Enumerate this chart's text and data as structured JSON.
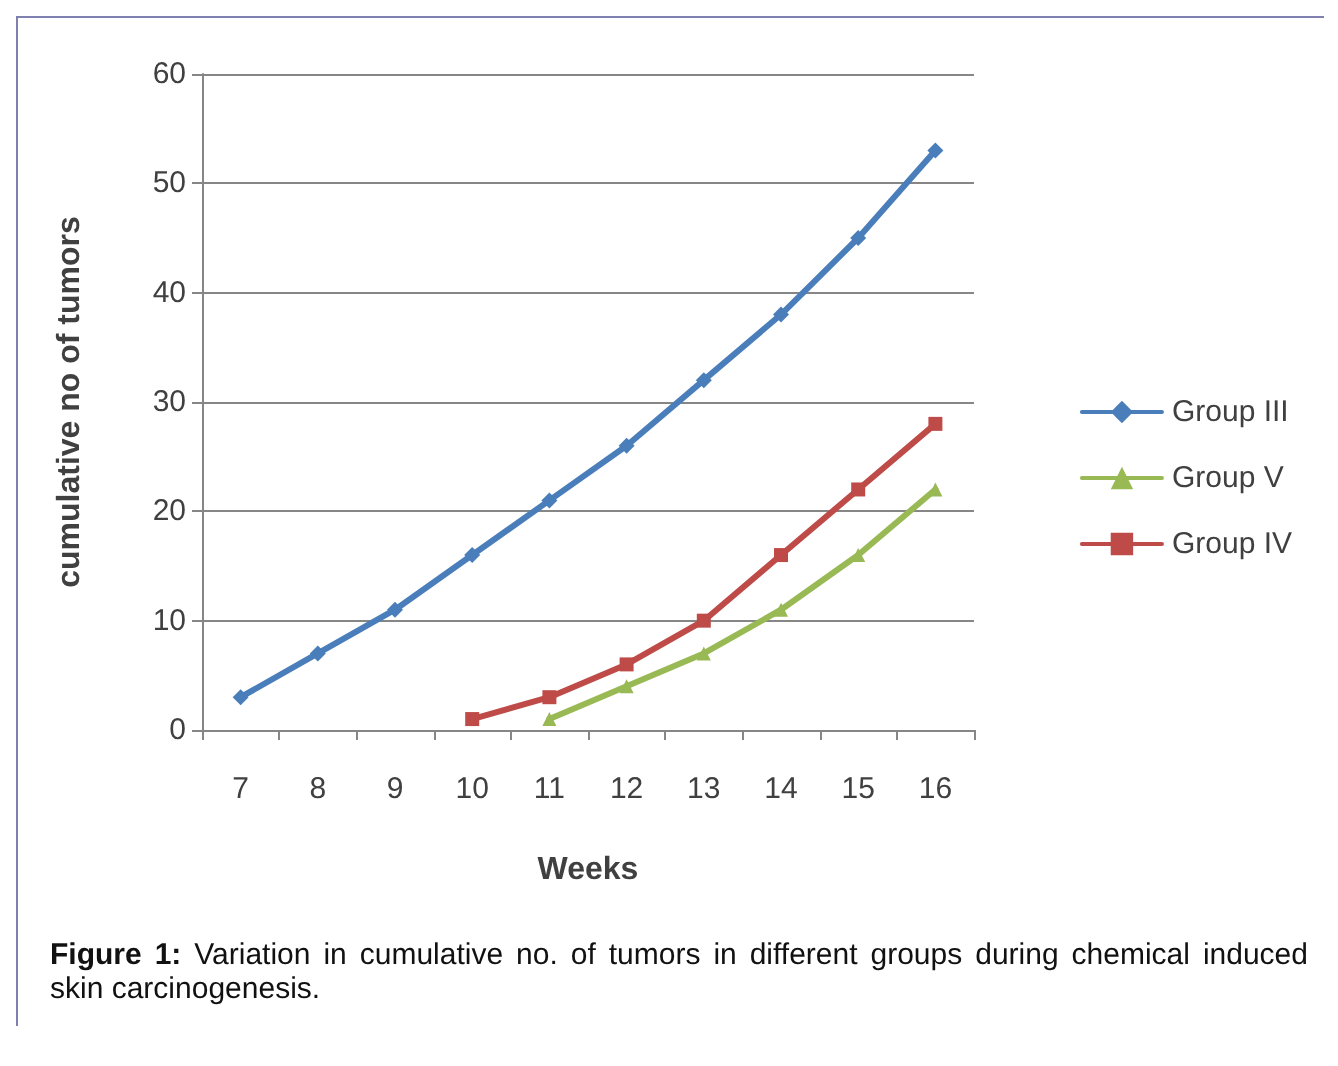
{
  "chart_data": {
    "type": "line",
    "xlabel": "Weeks",
    "ylabel": "cumulative no of tumors",
    "categories": [
      "7",
      "8",
      "9",
      "10",
      "11",
      "12",
      "13",
      "14",
      "15",
      "16"
    ],
    "series": [
      {
        "name": "Group III",
        "color": "#4a7ebb",
        "marker": "diamond",
        "values": [
          3,
          7,
          11,
          16,
          21,
          26,
          32,
          38,
          45,
          53
        ]
      },
      {
        "name": "Group V",
        "color": "#98b954",
        "marker": "triangle",
        "values": [
          null,
          null,
          null,
          null,
          1,
          4,
          7,
          11,
          16,
          22
        ]
      },
      {
        "name": "Group IV",
        "color": "#be4b48",
        "marker": "square",
        "values": [
          null,
          null,
          null,
          1,
          3,
          6,
          10,
          16,
          22,
          28
        ]
      }
    ],
    "ylim": [
      0,
      60
    ],
    "yticks": [
      0,
      10,
      20,
      30,
      40,
      50,
      60
    ],
    "grid": "y",
    "legend": "right",
    "line_style": "solid",
    "annotations": [
      "Figure 1: Variation in cumulative no. of tumors in different groups during chemical induced skin carcinogenesis."
    ]
  }
}
